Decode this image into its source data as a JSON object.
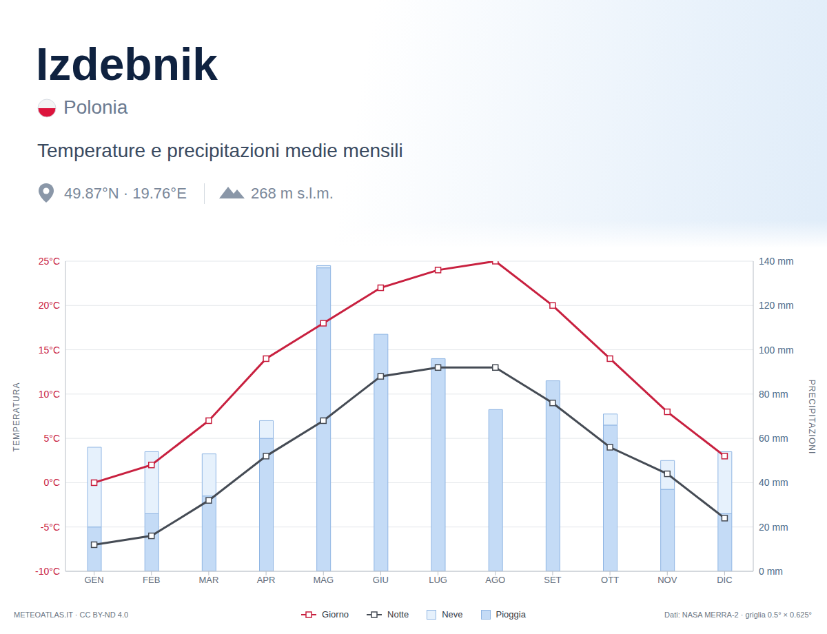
{
  "chart_data": {
    "type": "combo",
    "title": "Izdebnik",
    "subtitle": "Temperature e precipitazioni medie mensili",
    "country": "Polonia",
    "coordinates": "49.87°N · 19.76°E",
    "elevation": "268 m s.l.m.",
    "credit": "METEOATLAS.IT · CC BY-ND 4.0",
    "source": "Dati: NASA MERRA-2 · griglia 0.5° × 0.625°",
    "y_label": "TEMPERATURA",
    "y2_label": "PRECIPITAZIONI",
    "categories": [
      "GEN",
      "FEB",
      "MAR",
      "APR",
      "MAG",
      "GIU",
      "LUG",
      "AGO",
      "SET",
      "OTT",
      "NOV",
      "DIC"
    ],
    "ylim": [
      -10,
      25
    ],
    "yticks": [
      {
        "value": -10,
        "label": "-10°C"
      },
      {
        "value": -5,
        "label": "-5°C"
      },
      {
        "value": 0,
        "label": "0°C"
      },
      {
        "value": 5,
        "label": "5°C"
      },
      {
        "value": 10,
        "label": "10°C"
      },
      {
        "value": 15,
        "label": "15°C"
      },
      {
        "value": 20,
        "label": "20°C"
      },
      {
        "value": 25,
        "label": "25°C"
      }
    ],
    "y2lim": [
      0,
      140
    ],
    "y2ticks": [
      {
        "value": 0,
        "label": "0 mm"
      },
      {
        "value": 20,
        "label": "20 mm"
      },
      {
        "value": 40,
        "label": "40 mm"
      },
      {
        "value": 60,
        "label": "60 mm"
      },
      {
        "value": 80,
        "label": "80 mm"
      },
      {
        "value": 100,
        "label": "100 mm"
      },
      {
        "value": 120,
        "label": "120 mm"
      },
      {
        "value": 140,
        "label": "140 mm"
      }
    ],
    "grid": true,
    "stacked": true,
    "legend": "bottom",
    "series": [
      {
        "name": "Giorno",
        "type": "line",
        "axis": "y",
        "color": "#c8203f",
        "marker": "square",
        "values": [
          0,
          2,
          7,
          14,
          18,
          22,
          24,
          25,
          20,
          14,
          8,
          3
        ]
      },
      {
        "name": "Notte",
        "type": "line",
        "axis": "y",
        "color": "#454b54",
        "marker": "square",
        "values": [
          -7,
          -6,
          -2,
          3,
          7,
          12,
          13,
          13,
          9,
          4,
          1,
          -4
        ]
      },
      {
        "name": "Neve",
        "type": "bar",
        "axis": "y2",
        "color": "#e6f1fc",
        "values": [
          36,
          28,
          19,
          8,
          1,
          0,
          0,
          0,
          0,
          5,
          13,
          28
        ]
      },
      {
        "name": "Pioggia",
        "type": "bar",
        "axis": "y2",
        "color": "#c4dbf6",
        "values": [
          20,
          26,
          34,
          60,
          137,
          107,
          96,
          73,
          86,
          66,
          37,
          26
        ]
      }
    ]
  }
}
